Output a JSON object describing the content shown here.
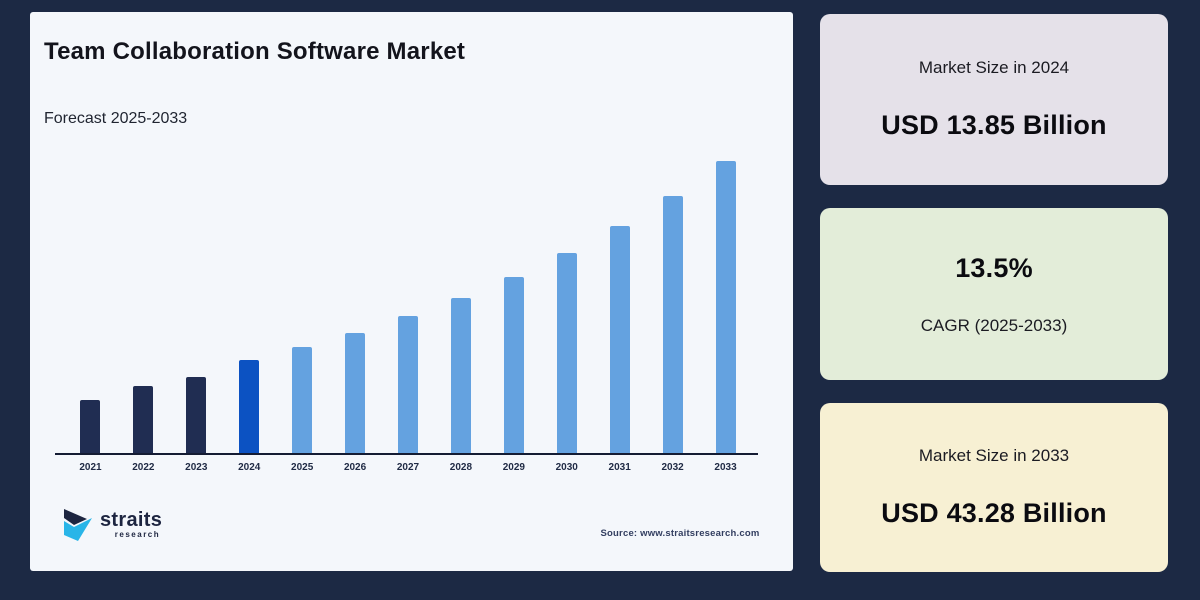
{
  "header": {
    "title": "Team Collaboration Software Market",
    "subtitle": "Forecast 2025-2033"
  },
  "chart_data": {
    "type": "bar",
    "title": "Team Collaboration Software Market",
    "subtitle": "Forecast 2025-2033",
    "unit": "USD Billion",
    "categories": [
      "2021",
      "2022",
      "2023",
      "2024",
      "2025",
      "2026",
      "2027",
      "2028",
      "2029",
      "2030",
      "2031",
      "2032",
      "2033"
    ],
    "values": [
      7.9,
      9.9,
      11.3,
      13.85,
      15.72,
      17.84,
      20.25,
      22.98,
      26.09,
      29.61,
      33.6,
      38.14,
      43.28
    ],
    "color_key": [
      "historical",
      "historical",
      "historical",
      "base",
      "forecast",
      "forecast",
      "forecast",
      "forecast",
      "forecast",
      "forecast",
      "forecast",
      "forecast",
      "forecast"
    ],
    "colors": {
      "historical": "#202d52",
      "base": "#0c52c2",
      "forecast": "#64a2e0"
    },
    "ylim": [
      0,
      45
    ],
    "grid": false,
    "legend": false,
    "y_axis_visible": false,
    "notes": "2024 base year = USD 13.85 Billion; 2033 = USD 43.28 Billion; CAGR 2025-2033 = 13.5%"
  },
  "logo": {
    "name": "straits",
    "subtext": "research"
  },
  "source": {
    "text": "Source: www.straitsresearch.com"
  },
  "cards": [
    {
      "label": "Market Size in 2024",
      "value": "USD 13.85 Billion",
      "bg": "#e5e1e9"
    },
    {
      "value": "13.5%",
      "label": "CAGR (2025-2033)",
      "bg": "#e3edd9"
    },
    {
      "label": "Market Size in 2033",
      "value": "USD 43.28 Billion",
      "bg": "#f7f0d3"
    }
  ],
  "theme": {
    "page_bg": "#1c2944",
    "panel_bg": "#f4f7fb",
    "axis_color": "#141c33",
    "logo_dark": "#1d2540",
    "logo_cyan": "#29b5e8"
  }
}
